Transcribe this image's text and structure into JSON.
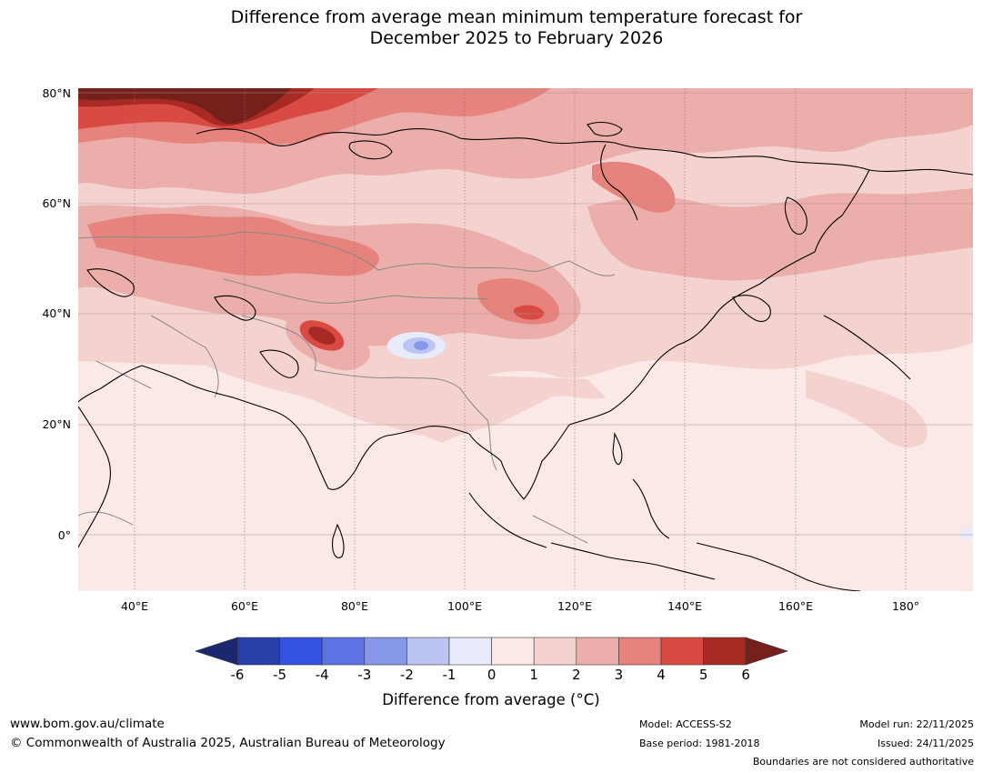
{
  "title": {
    "line1": "Difference from average mean minimum temperature forecast for",
    "line2": "December 2025 to February 2026"
  },
  "axes": {
    "lat_labels": [
      "80°N",
      "60°N",
      "40°N",
      "20°N",
      "0°"
    ],
    "lon_labels": [
      "40°E",
      "60°E",
      "80°E",
      "100°E",
      "120°E",
      "140°E",
      "160°E",
      "180°"
    ]
  },
  "colorbar": {
    "ticks": [
      "-6",
      "-5",
      "-4",
      "-3",
      "-2",
      "-1",
      "0",
      "1",
      "2",
      "3",
      "4",
      "5",
      "6"
    ],
    "colors": [
      "#283ea8",
      "#3352e0",
      "#5c74e3",
      "#8697e8",
      "#bcc4f3",
      "#e8ebfb",
      "#fbe9e7",
      "#f4d2cf",
      "#ecaeab",
      "#e6837c",
      "#d94a42",
      "#a82a24"
    ],
    "under_color": "#1a2870",
    "over_color": "#76201b",
    "label": "Difference from average (°C)"
  },
  "footer": {
    "website": "www.bom.gov.au/climate",
    "copyright": "© Commonwealth of Australia 2025, Australian Bureau of Meteorology",
    "model": "Model: ACCESS-S2",
    "base_period": "Base period: 1981-2018",
    "model_run": "Model run: 22/11/2025",
    "issued": "Issued: 24/11/2025",
    "disclaimer": "Boundaries are not considered authoritative"
  },
  "map": {
    "background_color": "#fbe9e7",
    "coastline_color": "#000000",
    "border_color": "#888888"
  }
}
